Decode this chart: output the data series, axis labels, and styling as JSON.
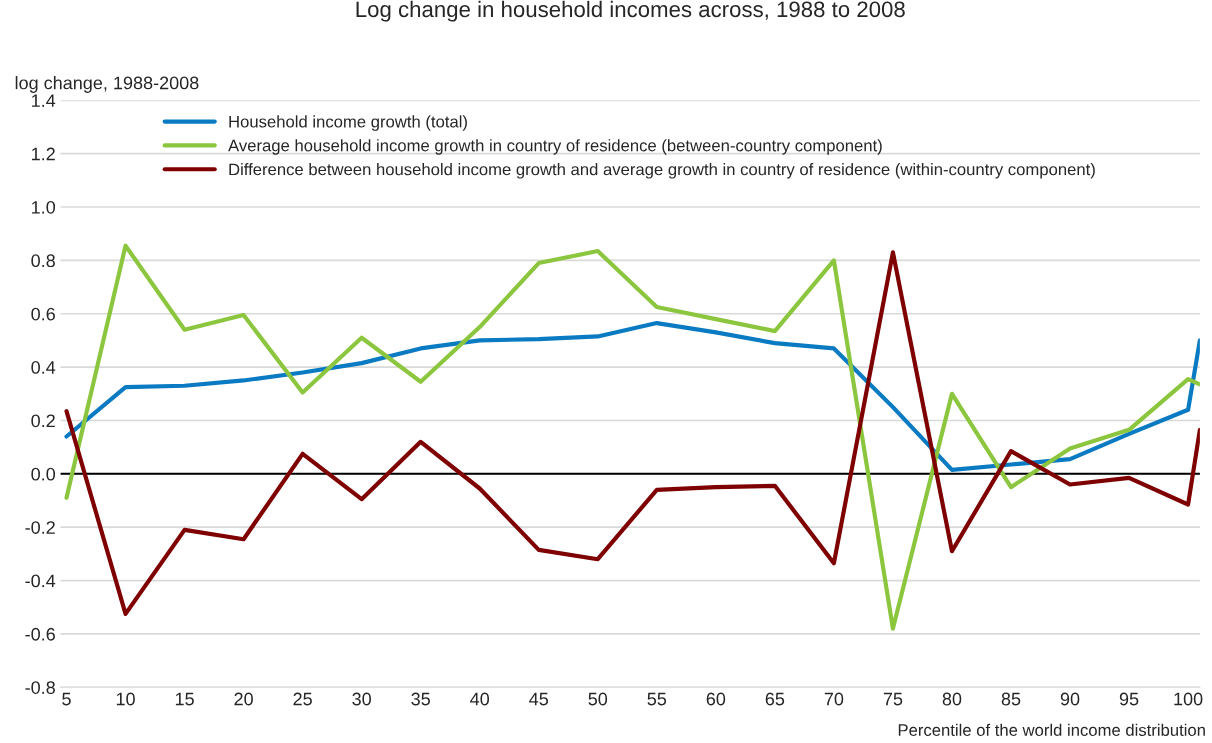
{
  "chart_data": {
    "type": "line",
    "title": "Log change in household incomes across, 1988 to 2008",
    "ylabel": "log change, 1988-2008",
    "xlabel": "Percentile of the world income distribution",
    "x": [
      5,
      10,
      15,
      20,
      25,
      30,
      35,
      40,
      45,
      50,
      55,
      60,
      65,
      70,
      75,
      80,
      85,
      90,
      95,
      100,
      101
    ],
    "xlim": [
      4.5,
      101
    ],
    "xticks": [
      5,
      10,
      15,
      20,
      25,
      30,
      35,
      40,
      45,
      50,
      55,
      60,
      65,
      70,
      75,
      80,
      85,
      90,
      95,
      100
    ],
    "ylim": [
      -0.8,
      1.4
    ],
    "yticks": [
      {
        "value": -0.8,
        "label": "-0.8"
      },
      {
        "value": -0.6,
        "label": "-0.6"
      },
      {
        "value": -0.4,
        "label": "-0.4"
      },
      {
        "value": -0.2,
        "label": "-0.2"
      },
      {
        "value": 0,
        "label": "0.0"
      },
      {
        "value": 0.2,
        "label": "0.2"
      },
      {
        "value": 0.4,
        "label": "0.4"
      },
      {
        "value": 0.6,
        "label": "0.6"
      },
      {
        "value": 0.8,
        "label": "0.8"
      },
      {
        "value": 1.0,
        "label": "1.0"
      },
      {
        "value": 1.2,
        "label": "1.2"
      },
      {
        "value": 1.4,
        "label": "1.4"
      }
    ],
    "grid": "y",
    "legend": "top",
    "marker": "none",
    "line_style": "solid",
    "ref_lines": [
      {
        "axis": "y",
        "value": 0,
        "label": null,
        "color": "#000000"
      }
    ],
    "series": [
      {
        "name": "Household income growth (total)",
        "color": "#0a7bc2",
        "values": [
          0.14,
          0.325,
          0.33,
          0.35,
          0.38,
          0.415,
          0.47,
          0.5,
          0.505,
          0.515,
          0.565,
          0.53,
          0.49,
          0.47,
          0.25,
          0.015,
          0.035,
          0.055,
          0.15,
          0.24,
          0.5
        ]
      },
      {
        "name": "Average household income growth in country of residence (between-country component)",
        "color": "#8cc63f",
        "values": [
          -0.09,
          0.855,
          0.54,
          0.595,
          0.305,
          0.51,
          0.345,
          0.55,
          0.79,
          0.835,
          0.625,
          0.58,
          0.535,
          0.8,
          -0.58,
          0.3,
          -0.05,
          0.095,
          0.165,
          0.355,
          0.335
        ]
      },
      {
        "name": "Difference between household income growth and average growth in country of residence (within-country component)",
        "color": "#7f0000",
        "values": [
          0.235,
          -0.525,
          -0.21,
          -0.245,
          0.075,
          -0.095,
          0.12,
          -0.055,
          -0.285,
          -0.32,
          -0.06,
          -0.05,
          -0.045,
          -0.335,
          0.83,
          -0.29,
          0.085,
          -0.04,
          -0.015,
          -0.115,
          0.165
        ]
      }
    ]
  }
}
